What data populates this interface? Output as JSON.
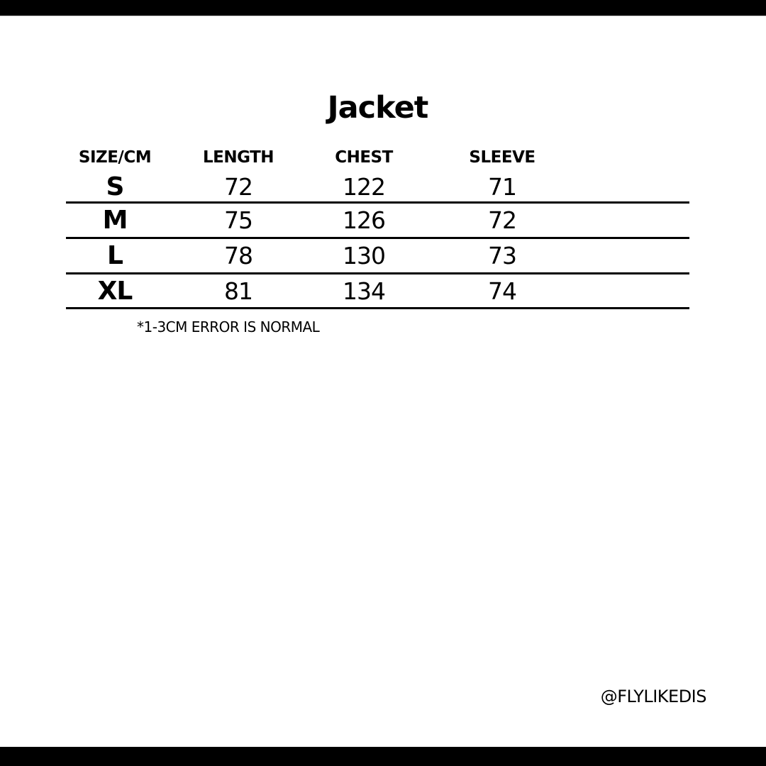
{
  "page": {
    "title": "Jacket",
    "note": "*1-3CM ERROR IS NORMAL",
    "watermark": "@FLYLIKEDIS"
  },
  "size_chart": {
    "columns": [
      "SIZE/CM",
      "LENGTH",
      "CHEST",
      "SLEEVE"
    ],
    "rows": [
      {
        "size": "S",
        "length": "72",
        "chest": "122",
        "sleeve": "71"
      },
      {
        "size": "M",
        "length": "75",
        "chest": "126",
        "sleeve": "72"
      },
      {
        "size": "L",
        "length": "78",
        "chest": "130",
        "sleeve": "73"
      },
      {
        "size": "XL",
        "length": "81",
        "chest": "134",
        "sleeve": "74"
      }
    ]
  },
  "colors": {
    "background": "#ffffff",
    "text": "#000000",
    "letterbox_bar": "#000000",
    "table_rule": "#000000"
  }
}
